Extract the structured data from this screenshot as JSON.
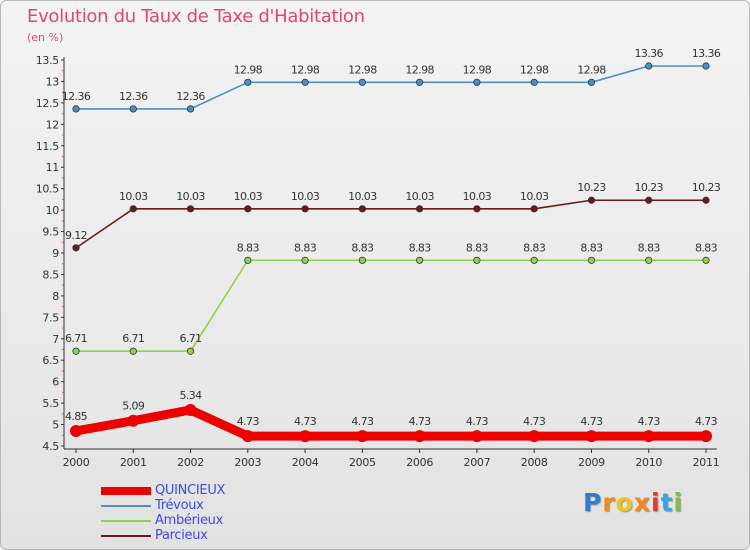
{
  "page": {
    "title": "Evolution du Taux de Taxe d'Habitation",
    "subtitle": "(en %)"
  },
  "chart_data": {
    "type": "line",
    "categories": [
      "2000",
      "2001",
      "2002",
      "2003",
      "2004",
      "2005",
      "2006",
      "2007",
      "2008",
      "2009",
      "2010",
      "2011"
    ],
    "ylim": [
      4.5,
      13.5
    ],
    "yticks": [
      4.5,
      5,
      5.5,
      6,
      6.5,
      7,
      7.5,
      8,
      8.5,
      9,
      9.5,
      10,
      10.5,
      11,
      11.5,
      12,
      12.5,
      13,
      13.5
    ],
    "ytick_labels": [
      "4.5",
      "5",
      "5.5",
      "6",
      "6.5",
      "7",
      "7.5",
      "8",
      "8.5",
      "9",
      "9.5",
      "10",
      "10.5",
      "11",
      "11.5",
      "12",
      "12.5",
      "13",
      "13.5"
    ],
    "grid": false,
    "legend_position": "bottom-left",
    "series": [
      {
        "name": "Trévoux",
        "color": "#4a90c8",
        "values": [
          12.36,
          12.36,
          12.36,
          12.98,
          12.98,
          12.98,
          12.98,
          12.98,
          12.98,
          12.98,
          13.36,
          13.36
        ],
        "labels": [
          "12.36",
          "12.36",
          "12.36",
          "12.98",
          "12.98",
          "12.98",
          "12.98",
          "12.98",
          "12.98",
          "12.98",
          "13.36",
          "13.36"
        ]
      },
      {
        "name": "Parcieux",
        "color": "#6b1a1a",
        "values": [
          9.12,
          10.03,
          10.03,
          10.03,
          10.03,
          10.03,
          10.03,
          10.03,
          10.03,
          10.23,
          10.23,
          10.23
        ],
        "labels": [
          "9.12",
          "10.03",
          "10.03",
          "10.03",
          "10.03",
          "10.03",
          "10.03",
          "10.03",
          "10.03",
          "10.23",
          "10.23",
          "10.23"
        ]
      },
      {
        "name": "Ambérieux",
        "color": "#8fd14f",
        "values": [
          6.71,
          6.71,
          6.71,
          8.83,
          8.83,
          8.83,
          8.83,
          8.83,
          8.83,
          8.83,
          8.83,
          8.83
        ],
        "labels": [
          "6.71",
          "6.71",
          "6.71",
          "8.83",
          "8.83",
          "8.83",
          "8.83",
          "8.83",
          "8.83",
          "8.83",
          "8.83",
          "8.83"
        ]
      },
      {
        "name": "QUINCIEUX",
        "color": "#ee0000",
        "values": [
          4.85,
          5.09,
          5.34,
          4.73,
          4.73,
          4.73,
          4.73,
          4.73,
          4.73,
          4.73,
          4.73,
          4.73
        ],
        "labels": [
          "4.85",
          "5.09",
          "5.34",
          "4.73",
          "4.73",
          "4.73",
          "4.73",
          "4.73",
          "4.73",
          "4.73",
          "4.73",
          "4.73"
        ]
      }
    ]
  },
  "legend": {
    "items": [
      {
        "label": "QUINCIEUX",
        "color": "#ee0000"
      },
      {
        "label": "Trévoux",
        "color": "#4a90c8"
      },
      {
        "label": "Ambérieux",
        "color": "#8fd14f"
      },
      {
        "label": "Parcieux",
        "color": "#6b1a1a"
      }
    ]
  },
  "logo": {
    "letters": [
      "P",
      "r",
      "o",
      "x",
      "i",
      "t",
      "i"
    ],
    "colors": [
      "#2a7fd4",
      "#f08a1c",
      "#e8c81a",
      "#f08a1c",
      "#e03a2a",
      "#3aa3e0",
      "#7bc142"
    ]
  }
}
